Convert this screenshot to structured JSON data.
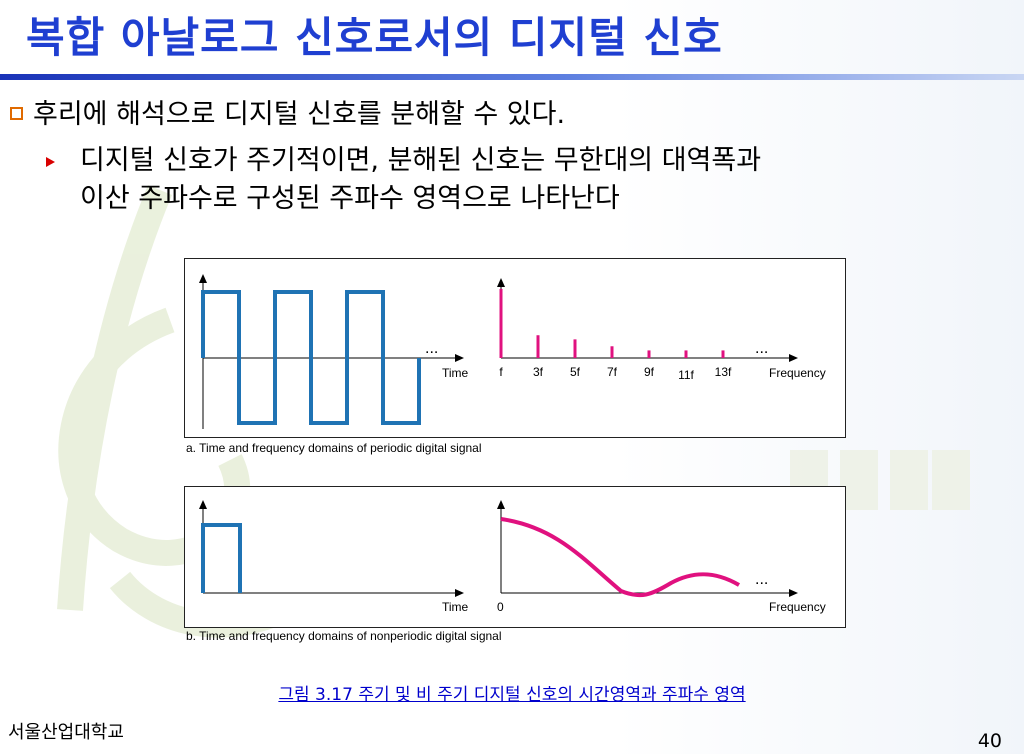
{
  "slide": {
    "title": "복합 아날로그 신호로서의 디지털 신호",
    "bullet_main": "후리에 해석으로 디지털 신호를 분해할 수 있다.",
    "bullet_sub_line1": "디지털 신호가 주기적이면, 분해된 신호는 무한대의 대역폭과",
    "bullet_sub_line2": "이산 주파수로 구성된 주파수 영역으로 나타난다",
    "caption": "그림 3.17  주기 및 비 주기 디지털 신호의 시간영역과 주파수 영역",
    "footer_left": "서울산업대학교",
    "page_number": "40"
  },
  "figure": {
    "panel_a": {
      "label": "a. Time and frequency domains of periodic digital signal",
      "time_axis_label": "Time",
      "freq_axis_label": "Frequency",
      "ellipsis": "...",
      "harmonic_labels": [
        "f",
        "3f",
        "5f",
        "7f",
        "9f",
        "11f",
        "13f"
      ],
      "harmonic_amplitudes": [
        1.0,
        0.33,
        0.27,
        0.17,
        0.11,
        0.11,
        0.11
      ]
    },
    "panel_b": {
      "label": "b. Time and frequency domains of nonperiodic digital signal",
      "time_axis_label": "Time",
      "freq_axis_label": "Frequency",
      "freq_origin_label": "0",
      "ellipsis": "..."
    }
  },
  "colors": {
    "title": "#1f3fd1",
    "time_signal": "#1f73b4",
    "spectrum": "#e0117f"
  }
}
